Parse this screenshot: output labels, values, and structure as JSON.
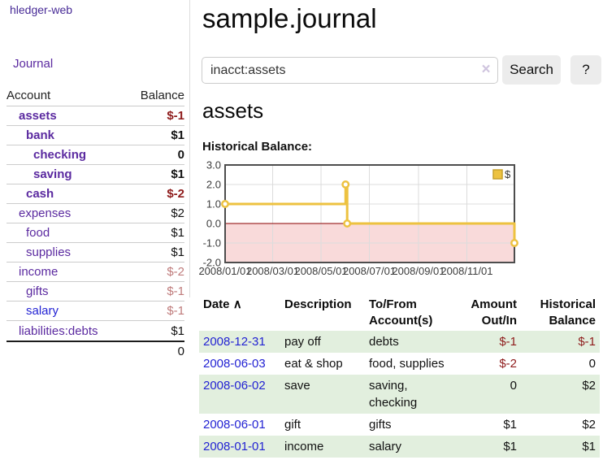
{
  "sidebar": {
    "brand": "hledger-web",
    "nav": {
      "journal": "Journal"
    },
    "accounts_table": {
      "headers": {
        "account": "Account",
        "balance": "Balance"
      },
      "rows": [
        {
          "name": "assets",
          "balance": "$-1",
          "level": 1,
          "bold": true,
          "balance_style": "negative-strong"
        },
        {
          "name": "bank",
          "balance": "$1",
          "level": 2,
          "bold": true,
          "balance_style": "positive"
        },
        {
          "name": "checking",
          "balance": "0",
          "level": 3,
          "bold": true,
          "balance_style": "positive"
        },
        {
          "name": "saving",
          "balance": "$1",
          "level": 3,
          "bold": true,
          "balance_style": "positive"
        },
        {
          "name": "cash",
          "balance": "$-2",
          "level": 2,
          "bold": true,
          "balance_style": "negative-strong"
        },
        {
          "name": "expenses",
          "balance": "$2",
          "level": 1,
          "bold": false,
          "balance_style": "positive"
        },
        {
          "name": "food",
          "balance": "$1",
          "level": 2,
          "bold": false,
          "balance_style": "positive"
        },
        {
          "name": "supplies",
          "balance": "$1",
          "level": 2,
          "bold": false,
          "balance_style": "positive"
        },
        {
          "name": "income",
          "balance": "$-2",
          "level": 1,
          "bold": false,
          "balance_style": "negative-muted"
        },
        {
          "name": "gifts",
          "balance": "$-1",
          "level": 2,
          "bold": false,
          "balance_style": "negative-muted"
        },
        {
          "name": "salary",
          "balance": "$-1",
          "level": 2,
          "bold": false,
          "balance_style": "negative-muted",
          "link_style": "blue"
        },
        {
          "name": "liabilities:debts",
          "balance": "$1",
          "level": 1,
          "bold": false,
          "balance_style": "positive"
        }
      ],
      "total": "0"
    }
  },
  "header": {
    "title": "sample.journal"
  },
  "search": {
    "query": "inacct:assets",
    "clear_icon": "×",
    "search_label": "Search",
    "help_label": "?"
  },
  "account_page": {
    "title": "assets",
    "chart_label": "Historical Balance:"
  },
  "chart_data": {
    "type": "line",
    "title": "Historical Balance",
    "series": [
      {
        "name": "$",
        "color": "#edc240",
        "step": true,
        "points": [
          [
            "2008-01-01",
            1
          ],
          [
            "2008-06-01",
            2
          ],
          [
            "2008-06-03",
            0
          ],
          [
            "2008-12-31",
            -1
          ]
        ]
      }
    ],
    "ylim": [
      -2,
      3
    ],
    "ytick_labels": [
      "3.0",
      "2.0",
      "1.0",
      "0.0",
      "-1.0",
      "-2.0"
    ],
    "xtick_labels": [
      "2008/01/01",
      "2008/03/01",
      "2008/05/01",
      "2008/07/01",
      "2008/09/01",
      "2008/11/01"
    ],
    "x_range": [
      "2008-01-01",
      "2008-12-31"
    ],
    "legend": {
      "label": "$",
      "position": "top-right"
    },
    "grid": true,
    "grid_color": "#dcdcdc",
    "frame_color": "#4d4d4d",
    "zero_line_color": "#8b0000",
    "negative_region_color": "#f9dada",
    "point_fill": "#ffffff",
    "legend_swatch_border": "#c7a12c"
  },
  "register_table": {
    "headers": {
      "date": "Date",
      "sort_icon": "∧",
      "description": "Description",
      "accounts": "To/From Account(s)",
      "amount": "Amount Out/In",
      "balance": "Historical Balance"
    },
    "rows": [
      {
        "date": "2008-12-31",
        "description": "pay off",
        "accounts": "debts",
        "amount": "$-1",
        "amount_negative": true,
        "balance": "$-1",
        "balance_negative": true,
        "shaded": true
      },
      {
        "date": "2008-06-03",
        "description": "eat & shop",
        "accounts": "food, supplies",
        "amount": "$-2",
        "amount_negative": true,
        "balance": "0",
        "balance_negative": false,
        "shaded": false
      },
      {
        "date": "2008-06-02",
        "description": "save",
        "accounts": "saving, checking",
        "amount": "0",
        "amount_negative": false,
        "balance": "$2",
        "balance_negative": false,
        "shaded": true
      },
      {
        "date": "2008-06-01",
        "description": "gift",
        "accounts": "gifts",
        "amount": "$1",
        "amount_negative": false,
        "balance": "$2",
        "balance_negative": false,
        "shaded": false
      },
      {
        "date": "2008-01-01",
        "description": "income",
        "accounts": "salary",
        "amount": "$1",
        "amount_negative": false,
        "balance": "$1",
        "balance_negative": false,
        "shaded": true
      }
    ]
  }
}
